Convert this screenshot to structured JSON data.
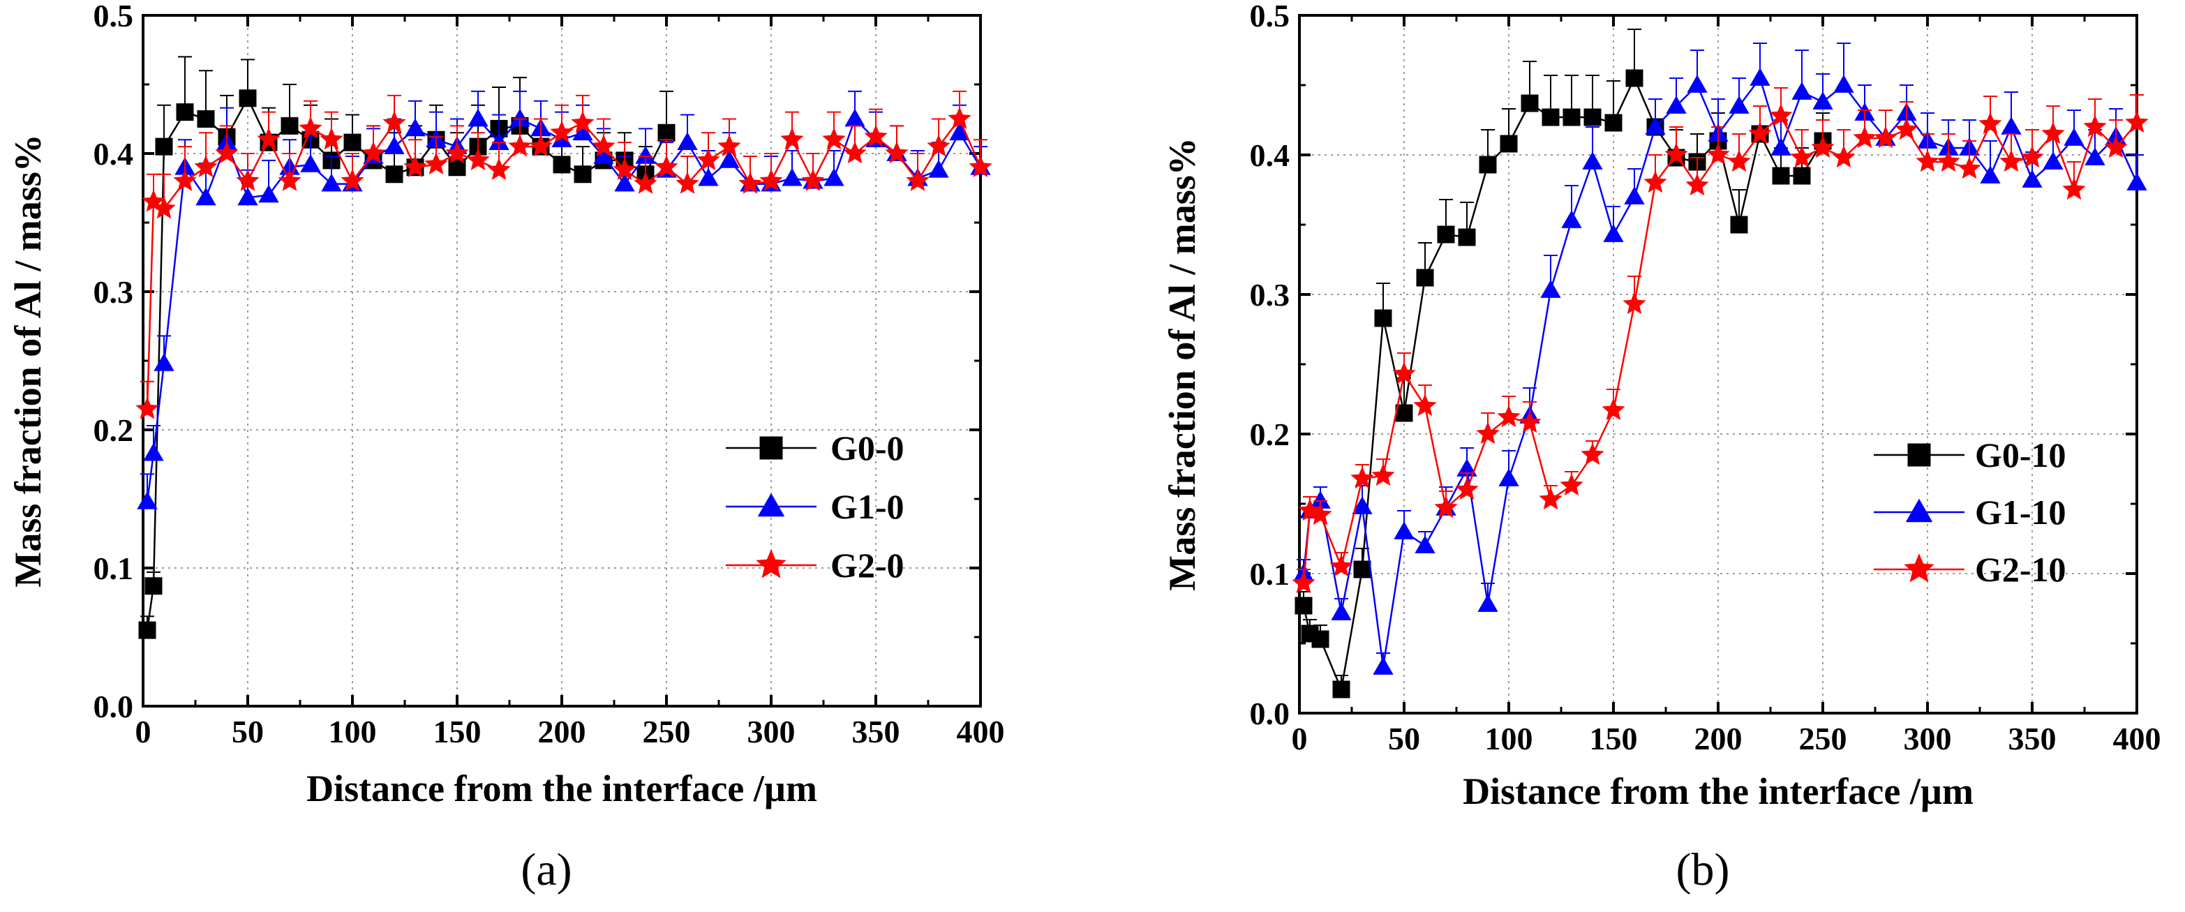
{
  "chart_data": [
    {
      "type": "line",
      "panel_label": "(a)",
      "xlabel": "Distance from the interface /µm",
      "ylabel": "Mass fraction of Al / mass%",
      "xlim": [
        0,
        400
      ],
      "ylim": [
        0,
        0.5
      ],
      "xticks": [
        "0",
        "50",
        "100",
        "150",
        "200",
        "250",
        "300",
        "350",
        "400"
      ],
      "yticks": [
        "0.0",
        "0.1",
        "0.2",
        "0.3",
        "0.4",
        "0.5"
      ],
      "grid": true,
      "legend_position": "center-right",
      "series": [
        {
          "name": "G0-0",
          "color": "#000000",
          "marker": "square",
          "x": [
            2,
            5,
            10,
            20,
            30,
            40,
            50,
            60,
            70,
            80,
            90,
            100,
            110,
            120,
            130,
            140,
            150,
            160,
            170,
            180,
            190,
            200,
            210,
            220,
            230,
            240,
            250
          ],
          "y": [
            0.055,
            0.087,
            0.405,
            0.43,
            0.425,
            0.412,
            0.44,
            0.408,
            0.42,
            0.41,
            0.395,
            0.408,
            0.395,
            0.385,
            0.39,
            0.41,
            0.39,
            0.405,
            0.418,
            0.42,
            0.405,
            0.392,
            0.385,
            0.395,
            0.395,
            0.385,
            0.415
          ],
          "err": [
            0.01,
            0.01,
            0.03,
            0.04,
            0.035,
            0.03,
            0.028,
            0.025,
            0.03,
            0.025,
            0.03,
            0.02,
            0.025,
            0.03,
            0.03,
            0.025,
            0.025,
            0.03,
            0.03,
            0.035,
            0.02,
            0.02,
            0.02,
            0.02,
            0.02,
            0.02,
            0.03
          ]
        },
        {
          "name": "G1-0",
          "color": "#0000ff",
          "marker": "triangle",
          "x": [
            2,
            5,
            10,
            20,
            30,
            40,
            50,
            60,
            70,
            80,
            90,
            100,
            110,
            120,
            130,
            140,
            150,
            160,
            170,
            180,
            190,
            200,
            210,
            220,
            230,
            240,
            250,
            260,
            270,
            280,
            290,
            300,
            310,
            320,
            330,
            340,
            350,
            360,
            370,
            380,
            390,
            400
          ],
          "y": [
            0.148,
            0.183,
            0.248,
            0.39,
            0.368,
            0.408,
            0.368,
            0.37,
            0.39,
            0.392,
            0.378,
            0.378,
            0.398,
            0.405,
            0.418,
            0.41,
            0.405,
            0.425,
            0.408,
            0.425,
            0.418,
            0.41,
            0.415,
            0.398,
            0.378,
            0.398,
            0.388,
            0.408,
            0.382,
            0.395,
            0.378,
            0.378,
            0.382,
            0.38,
            0.382,
            0.425,
            0.41,
            0.4,
            0.382,
            0.388,
            0.415,
            0.39
          ],
          "err": [
            0.02,
            0.02,
            0.02,
            0.02,
            0.025,
            0.025,
            0.02,
            0.025,
            0.02,
            0.02,
            0.02,
            0.02,
            0.02,
            0.02,
            0.02,
            0.02,
            0.02,
            0.02,
            0.02,
            0.02,
            0.02,
            0.02,
            0.02,
            0.02,
            0.02,
            0.02,
            0.02,
            0.02,
            0.02,
            0.02,
            0.02,
            0.02,
            0.02,
            0.02,
            0.02,
            0.02,
            0.02,
            0.02,
            0.02,
            0.02,
            0.02,
            0.015
          ]
        },
        {
          "name": "G2-0",
          "color": "#ff0000",
          "marker": "star",
          "x": [
            2,
            5,
            10,
            20,
            30,
            40,
            50,
            60,
            70,
            80,
            90,
            100,
            110,
            120,
            130,
            140,
            150,
            160,
            170,
            180,
            190,
            200,
            210,
            220,
            230,
            240,
            250,
            260,
            270,
            280,
            290,
            300,
            310,
            320,
            330,
            340,
            350,
            360,
            370,
            380,
            390,
            400
          ],
          "y": [
            0.215,
            0.365,
            0.36,
            0.38,
            0.39,
            0.4,
            0.38,
            0.41,
            0.38,
            0.418,
            0.41,
            0.38,
            0.4,
            0.422,
            0.39,
            0.392,
            0.4,
            0.395,
            0.388,
            0.405,
            0.405,
            0.415,
            0.422,
            0.405,
            0.388,
            0.378,
            0.39,
            0.378,
            0.395,
            0.405,
            0.378,
            0.38,
            0.41,
            0.38,
            0.41,
            0.4,
            0.412,
            0.4,
            0.38,
            0.405,
            0.425,
            0.39
          ],
          "err": [
            0.02,
            0.02,
            0.025,
            0.025,
            0.025,
            0.02,
            0.02,
            0.02,
            0.02,
            0.02,
            0.02,
            0.02,
            0.02,
            0.02,
            0.02,
            0.02,
            0.02,
            0.02,
            0.02,
            0.02,
            0.02,
            0.02,
            0.02,
            0.02,
            0.02,
            0.02,
            0.02,
            0.02,
            0.02,
            0.02,
            0.02,
            0.02,
            0.02,
            0.02,
            0.02,
            0.02,
            0.02,
            0.02,
            0.02,
            0.02,
            0.02,
            0.02
          ]
        }
      ]
    },
    {
      "type": "line",
      "panel_label": "(b)",
      "xlabel": "Distance from the interface /µm",
      "ylabel": "Mass fraction of Al / mass%",
      "xlim": [
        0,
        400
      ],
      "ylim": [
        0,
        0.5
      ],
      "xticks": [
        "0",
        "50",
        "100",
        "150",
        "200",
        "250",
        "300",
        "350",
        "400"
      ],
      "yticks": [
        "0.0",
        "0.1",
        "0.2",
        "0.3",
        "0.4",
        "0.5"
      ],
      "grid": true,
      "legend_position": "center-right",
      "series": [
        {
          "name": "G0-10",
          "color": "#000000",
          "marker": "square",
          "x": [
            2,
            5,
            10,
            20,
            30,
            40,
            50,
            60,
            70,
            80,
            90,
            100,
            110,
            120,
            130,
            140,
            150,
            160,
            170,
            180,
            190,
            200,
            210,
            220,
            230,
            240,
            250
          ],
          "y": [
            0.077,
            0.057,
            0.053,
            0.017,
            0.103,
            0.283,
            0.215,
            0.312,
            0.343,
            0.341,
            0.393,
            0.408,
            0.437,
            0.427,
            0.427,
            0.427,
            0.423,
            0.455,
            0.42,
            0.398,
            0.395,
            0.41,
            0.35,
            0.415,
            0.385,
            0.385,
            0.41
          ],
          "err": [
            0.01,
            0.01,
            0.01,
            0.01,
            0.015,
            0.025,
            0.025,
            0.025,
            0.025,
            0.025,
            0.025,
            0.025,
            0.03,
            0.03,
            0.03,
            0.03,
            0.03,
            0.035,
            0.02,
            0.02,
            0.02,
            0.02,
            0.025,
            0.02,
            0.02,
            0.02,
            0.02
          ]
        },
        {
          "name": "G1-10",
          "color": "#0000ff",
          "marker": "triangle",
          "x": [
            2,
            5,
            10,
            20,
            30,
            40,
            50,
            60,
            70,
            80,
            90,
            100,
            110,
            120,
            130,
            140,
            150,
            160,
            170,
            180,
            190,
            200,
            210,
            220,
            230,
            240,
            250,
            260,
            270,
            280,
            290,
            300,
            310,
            320,
            330,
            340,
            350,
            360,
            370,
            380,
            390,
            400
          ],
          "y": [
            0.1,
            0.145,
            0.152,
            0.072,
            0.148,
            0.033,
            0.13,
            0.12,
            0.147,
            0.175,
            0.078,
            0.168,
            0.213,
            0.303,
            0.353,
            0.395,
            0.343,
            0.37,
            0.42,
            0.435,
            0.45,
            0.415,
            0.435,
            0.455,
            0.405,
            0.445,
            0.438,
            0.45,
            0.43,
            0.412,
            0.43,
            0.41,
            0.405,
            0.405,
            0.385,
            0.42,
            0.382,
            0.395,
            0.412,
            0.398,
            0.413,
            0.38
          ],
          "err": [
            0.01,
            0.01,
            0.01,
            0.01,
            0.015,
            0.01,
            0.015,
            0.01,
            0.015,
            0.015,
            0.015,
            0.02,
            0.02,
            0.025,
            0.025,
            0.025,
            0.02,
            0.02,
            0.02,
            0.02,
            0.025,
            0.025,
            0.02,
            0.025,
            0.02,
            0.03,
            0.02,
            0.03,
            0.02,
            0.02,
            0.02,
            0.02,
            0.02,
            0.02,
            0.025,
            0.025,
            0.02,
            0.02,
            0.02,
            0.02,
            0.02,
            0.02
          ]
        },
        {
          "name": "G2-10",
          "color": "#ff0000",
          "marker": "star",
          "x": [
            2,
            5,
            10,
            20,
            30,
            40,
            50,
            60,
            70,
            80,
            90,
            100,
            110,
            120,
            130,
            140,
            150,
            160,
            170,
            180,
            190,
            200,
            210,
            220,
            230,
            240,
            250,
            260,
            270,
            280,
            290,
            300,
            310,
            320,
            330,
            340,
            350,
            360,
            370,
            380,
            390,
            400
          ],
          "y": [
            0.093,
            0.145,
            0.142,
            0.105,
            0.168,
            0.17,
            0.243,
            0.22,
            0.147,
            0.16,
            0.2,
            0.212,
            0.208,
            0.153,
            0.163,
            0.185,
            0.217,
            0.293,
            0.38,
            0.4,
            0.378,
            0.4,
            0.395,
            0.415,
            0.428,
            0.398,
            0.405,
            0.398,
            0.412,
            0.412,
            0.418,
            0.395,
            0.395,
            0.39,
            0.422,
            0.395,
            0.398,
            0.415,
            0.375,
            0.42,
            0.405,
            0.423
          ],
          "err": [
            0.01,
            0.01,
            0.01,
            0.01,
            0.01,
            0.012,
            0.015,
            0.015,
            0.012,
            0.012,
            0.015,
            0.015,
            0.015,
            0.01,
            0.01,
            0.01,
            0.015,
            0.02,
            0.02,
            0.02,
            0.02,
            0.02,
            0.02,
            0.02,
            0.02,
            0.02,
            0.02,
            0.02,
            0.02,
            0.02,
            0.02,
            0.02,
            0.02,
            0.02,
            0.02,
            0.02,
            0.02,
            0.02,
            0.02,
            0.02,
            0.02,
            0.02
          ]
        }
      ]
    }
  ]
}
